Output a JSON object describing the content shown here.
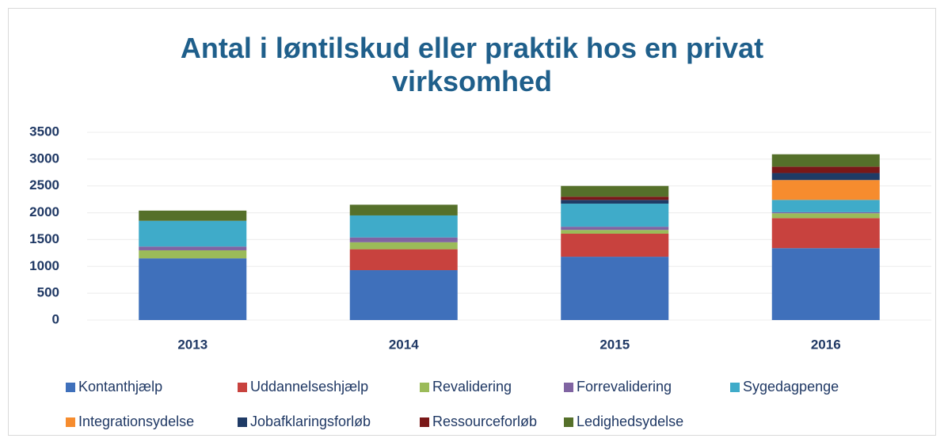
{
  "chart_data": {
    "type": "stacked_bar",
    "title": "Antal i løntilskud eller praktik hos en privat virksomhed",
    "categories": [
      "2013",
      "2014",
      "2015",
      "2016"
    ],
    "series": [
      {
        "name": "Kontanthjælp",
        "color": "#3f70bb",
        "values": [
          1150,
          930,
          1180,
          1340
        ]
      },
      {
        "name": "Uddannelseshjælp",
        "color": "#c8423e",
        "values": [
          0,
          390,
          430,
          560
        ]
      },
      {
        "name": "Revalidering",
        "color": "#9bbb59",
        "values": [
          150,
          130,
          70,
          90
        ]
      },
      {
        "name": "Forrevalidering",
        "color": "#8064a2",
        "values": [
          70,
          90,
          60,
          20
        ]
      },
      {
        "name": "Sygedagpenge",
        "color": "#3fabc9",
        "values": [
          480,
          410,
          430,
          230
        ]
      },
      {
        "name": "Integrationsydelse",
        "color": "#f68c2e",
        "values": [
          0,
          0,
          0,
          370
        ]
      },
      {
        "name": "Jobafklaringsforløb",
        "color": "#1f3b66",
        "values": [
          0,
          0,
          70,
          130
        ]
      },
      {
        "name": "Ressourceforløb",
        "color": "#7a1818",
        "values": [
          0,
          0,
          60,
          120
        ]
      },
      {
        "name": "Ledighedsydelse",
        "color": "#55702a",
        "values": [
          190,
          200,
          200,
          230
        ]
      }
    ],
    "ylim": [
      0,
      3500
    ],
    "yticks": [
      0,
      500,
      1000,
      1500,
      2000,
      2500,
      3000,
      3500
    ],
    "grid": true
  }
}
